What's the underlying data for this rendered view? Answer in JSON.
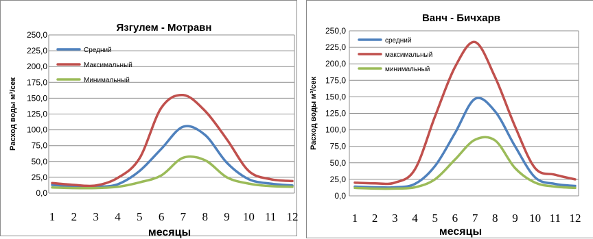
{
  "chart_data": [
    {
      "type": "line",
      "title": "Язгулем - Мотравн",
      "xlabel": "месяцы",
      "ylabel": "Расход воды м³/сек",
      "categories": [
        "1",
        "2",
        "3",
        "4",
        "5",
        "6",
        "7",
        "8",
        "9",
        "10",
        "11",
        "12"
      ],
      "yticks": [
        "0,0",
        "25,0",
        "50,0",
        "75,0",
        "100,0",
        "125,0",
        "150,0",
        "175,0",
        "200,0",
        "225,0",
        "250,0"
      ],
      "ylim": [
        0,
        250
      ],
      "grid": true,
      "legend_position": "top-left",
      "series": [
        {
          "name": "Средний",
          "color": "#4f81bd",
          "values": [
            13,
            11,
            10,
            14,
            35,
            70,
            105,
            92,
            48,
            22,
            15,
            12
          ]
        },
        {
          "name": "Максимальный",
          "color": "#c0504d",
          "values": [
            16,
            13,
            12,
            24,
            55,
            135,
            155,
            130,
            85,
            35,
            22,
            19
          ]
        },
        {
          "name": "Минимальный",
          "color": "#9bbb59",
          "values": [
            9,
            8,
            8,
            10,
            17,
            28,
            56,
            52,
            25,
            15,
            11,
            10
          ]
        }
      ]
    },
    {
      "type": "line",
      "title": "Ванч - Бичхарв",
      "xlabel": "месяцы",
      "ylabel": "Расход воды м³/сек",
      "categories": [
        "1",
        "2",
        "3",
        "4",
        "5",
        "6",
        "7",
        "8",
        "9",
        "10",
        "11",
        "12"
      ],
      "yticks": [
        "0,0",
        "25,0",
        "50,0",
        "75,0",
        "100,0",
        "125,0",
        "150,0",
        "175,0",
        "200,0",
        "225,0",
        "250,0"
      ],
      "ylim": [
        0,
        250
      ],
      "grid": true,
      "legend_position": "top-left",
      "series": [
        {
          "name": "средний",
          "color": "#4f81bd",
          "values": [
            14,
            13,
            13,
            18,
            45,
            95,
            147,
            128,
            75,
            28,
            18,
            15
          ]
        },
        {
          "name": "максимальный",
          "color": "#c0504d",
          "values": [
            20,
            19,
            20,
            40,
            120,
            195,
            233,
            180,
            105,
            42,
            32,
            25
          ]
        },
        {
          "name": "минимальный",
          "color": "#9bbb59",
          "values": [
            12,
            11,
            11,
            13,
            25,
            55,
            85,
            84,
            42,
            20,
            14,
            12
          ]
        }
      ]
    }
  ]
}
